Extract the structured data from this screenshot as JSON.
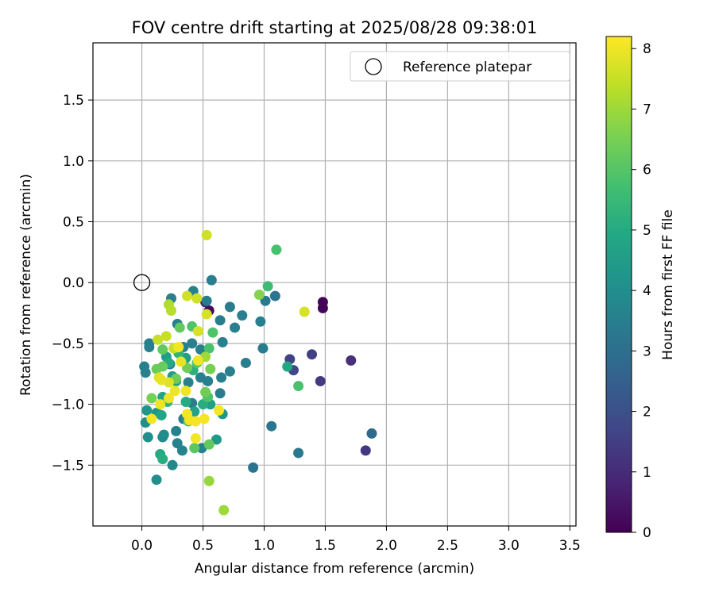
{
  "chart_data": {
    "type": "scatter",
    "title": "FOV centre drift starting at 2025/08/28 09:38:01",
    "xlabel": "Angular distance from reference (arcmin)",
    "ylabel": "Rotation from reference (arcmin)",
    "xlim": [
      -0.4,
      3.55
    ],
    "ylim": [
      -2.0,
      1.97
    ],
    "xticks": [
      "0.0",
      "0.5",
      "1.0",
      "1.5",
      "2.0",
      "2.5",
      "3.0",
      "3.5"
    ],
    "xtick_values": [
      0,
      0.5,
      1,
      1.5,
      2,
      2.5,
      3,
      3.5
    ],
    "yticks": [
      "1.5",
      "1.0",
      "0.5",
      "0.0",
      "−0.5",
      "−1.0",
      "−1.5"
    ],
    "ytick_values": [
      1.5,
      1.0,
      0.5,
      0.0,
      -0.5,
      -1.0,
      -1.5
    ],
    "grid": true,
    "legend": {
      "position": "top-right",
      "entries": [
        "Reference platepar"
      ]
    },
    "reference_point": {
      "x": 0.0,
      "y": 0.0,
      "label": "Reference platepar"
    },
    "colorbar": {
      "label": "Hours from first FF file",
      "colormap": "viridis",
      "range": [
        0,
        8.2
      ],
      "ticks": [
        "0",
        "1",
        "2",
        "3",
        "4",
        "5",
        "6",
        "7",
        "8"
      ],
      "tick_values": [
        0,
        1,
        2,
        3,
        4,
        5,
        6,
        7,
        8
      ]
    },
    "series": [
      {
        "fields": [
          "x",
          "y",
          "hours"
        ],
        "points": [
          [
            1.48,
            -0.16,
            0.1
          ],
          [
            1.48,
            -0.21,
            0.1
          ],
          [
            0.55,
            -0.23,
            0.2
          ],
          [
            0.52,
            -0.16,
            0.6
          ],
          [
            1.71,
            -0.64,
            1.1
          ],
          [
            1.83,
            -1.38,
            1.3
          ],
          [
            1.46,
            -0.81,
            1.4
          ],
          [
            1.39,
            -0.59,
            1.5
          ],
          [
            1.21,
            -0.63,
            1.6
          ],
          [
            1.24,
            -0.72,
            1.7
          ],
          [
            1.88,
            -1.24,
            2.8
          ],
          [
            0.91,
            -1.52,
            3.1
          ],
          [
            1.06,
            -1.18,
            3.2
          ],
          [
            1.28,
            -1.4,
            3.3
          ],
          [
            1.09,
            -0.11,
            3.2
          ],
          [
            1.01,
            -0.15,
            3.3
          ],
          [
            0.99,
            -0.54,
            3.4
          ],
          [
            0.85,
            -0.66,
            3.4
          ],
          [
            0.97,
            -0.32,
            3.5
          ],
          [
            0.82,
            -0.27,
            3.5
          ],
          [
            0.76,
            -0.37,
            3.5
          ],
          [
            0.72,
            -0.2,
            3.4
          ],
          [
            0.64,
            -0.31,
            3.4
          ],
          [
            0.66,
            -0.49,
            3.5
          ],
          [
            0.72,
            -0.73,
            3.5
          ],
          [
            0.65,
            -0.78,
            3.5
          ],
          [
            0.64,
            -0.91,
            3.4
          ],
          [
            0.57,
            0.02,
            3.5
          ],
          [
            0.42,
            -0.07,
            3.5
          ],
          [
            0.24,
            -0.13,
            3.5
          ],
          [
            0.53,
            -0.15,
            3.4
          ],
          [
            0.48,
            -0.55,
            3.5
          ],
          [
            0.41,
            -0.5,
            3.5
          ],
          [
            0.34,
            -0.53,
            3.5
          ],
          [
            0.29,
            -0.34,
            3.5
          ],
          [
            0.23,
            -0.67,
            3.5
          ],
          [
            0.06,
            -0.5,
            3.5
          ],
          [
            0.06,
            -0.53,
            3.5
          ],
          [
            0.02,
            -0.69,
            3.5
          ],
          [
            0.03,
            -0.74,
            3.5
          ],
          [
            0.38,
            -0.82,
            3.5
          ],
          [
            0.48,
            -0.78,
            3.5
          ],
          [
            0.54,
            -0.81,
            3.5
          ],
          [
            0.41,
            -0.99,
            3.5
          ],
          [
            0.34,
            -1.12,
            3.5
          ],
          [
            0.28,
            -1.22,
            3.6
          ],
          [
            0.29,
            -1.32,
            3.6
          ],
          [
            0.33,
            -1.38,
            3.6
          ],
          [
            0.49,
            -1.36,
            3.6
          ],
          [
            0.25,
            -1.5,
            3.8
          ],
          [
            0.17,
            -1.27,
            3.9
          ],
          [
            0.18,
            -1.25,
            4.0
          ],
          [
            0.12,
            -1.62,
            4.0
          ],
          [
            0.05,
            -1.27,
            4.0
          ],
          [
            0.03,
            -1.15,
            4.0
          ],
          [
            0.04,
            -1.05,
            4.2
          ],
          [
            0.12,
            -1.07,
            4.3
          ],
          [
            0.66,
            -1.08,
            4.3
          ],
          [
            0.61,
            -1.29,
            4.4
          ],
          [
            0.2,
            -0.61,
            4.5
          ],
          [
            0.25,
            -0.77,
            4.5
          ],
          [
            0.28,
            -0.81,
            4.6
          ],
          [
            0.36,
            -0.62,
            4.6
          ],
          [
            0.56,
            -1.0,
            4.6
          ],
          [
            0.43,
            -1.06,
            4.7
          ],
          [
            0.17,
            -0.94,
            4.8
          ],
          [
            0.16,
            -1.09,
            4.8
          ],
          [
            1.19,
            -0.69,
            4.9
          ],
          [
            0.36,
            -0.98,
            5.0
          ],
          [
            0.22,
            -0.66,
            5.0
          ],
          [
            0.15,
            -1.41,
            5.0
          ],
          [
            0.17,
            -1.45,
            5.1
          ],
          [
            0.5,
            -1.0,
            5.1
          ],
          [
            0.42,
            -0.72,
            5.2
          ],
          [
            0.3,
            -0.58,
            5.3
          ],
          [
            0.21,
            -0.98,
            5.3
          ],
          [
            1.03,
            -0.03,
            5.6
          ],
          [
            1.1,
            0.27,
            5.8
          ],
          [
            1.28,
            -0.85,
            5.8
          ],
          [
            0.55,
            -0.54,
            5.8
          ],
          [
            0.58,
            -0.41,
            5.9
          ],
          [
            0.45,
            -0.66,
            5.9
          ],
          [
            0.41,
            -0.36,
            5.9
          ],
          [
            0.54,
            -0.94,
            5.9
          ],
          [
            0.38,
            -1.14,
            6.0
          ],
          [
            0.43,
            -1.36,
            6.1
          ],
          [
            0.55,
            -1.33,
            6.2
          ],
          [
            0.31,
            -0.37,
            6.2
          ],
          [
            0.17,
            -0.55,
            6.2
          ],
          [
            0.12,
            -0.71,
            6.3
          ],
          [
            0.17,
            -0.69,
            6.3
          ],
          [
            0.28,
            -0.79,
            6.4
          ],
          [
            0.37,
            -0.7,
            6.4
          ],
          [
            0.52,
            -0.9,
            6.4
          ],
          [
            0.56,
            -0.71,
            6.5
          ],
          [
            0.08,
            -0.95,
            6.5
          ],
          [
            0.96,
            -0.1,
            6.7
          ],
          [
            0.55,
            -1.63,
            6.9
          ],
          [
            0.67,
            -1.87,
            7.0
          ],
          [
            0.52,
            -0.61,
            7.0
          ],
          [
            0.22,
            -0.18,
            7.2
          ],
          [
            0.24,
            -0.23,
            7.3
          ],
          [
            0.13,
            -0.47,
            7.5
          ],
          [
            0.2,
            -0.44,
            7.5
          ],
          [
            0.26,
            -0.54,
            7.5
          ],
          [
            0.37,
            -0.11,
            7.6
          ],
          [
            0.45,
            -0.13,
            7.6
          ],
          [
            0.46,
            -0.4,
            7.7
          ],
          [
            0.53,
            0.39,
            7.6
          ],
          [
            0.53,
            -0.26,
            7.7
          ],
          [
            1.33,
            -0.24,
            7.7
          ],
          [
            0.22,
            -0.82,
            7.8
          ],
          [
            0.14,
            -0.78,
            7.8
          ],
          [
            0.16,
            -0.8,
            7.9
          ],
          [
            0.32,
            -0.65,
            7.9
          ],
          [
            0.46,
            -0.64,
            8.0
          ],
          [
            0.36,
            -0.89,
            8.0
          ],
          [
            0.27,
            -0.89,
            8.0
          ],
          [
            0.22,
            -0.95,
            8.0
          ],
          [
            0.15,
            -1.0,
            8.0
          ],
          [
            0.08,
            -1.12,
            8.1
          ],
          [
            0.3,
            -0.53,
            8.1
          ],
          [
            0.37,
            -1.08,
            8.1
          ],
          [
            0.39,
            -1.13,
            8.1
          ],
          [
            0.44,
            -1.14,
            8.1
          ],
          [
            0.51,
            -1.12,
            8.1
          ],
          [
            0.63,
            -1.05,
            8.1
          ],
          [
            0.44,
            -1.28,
            8.1
          ]
        ]
      }
    ]
  }
}
